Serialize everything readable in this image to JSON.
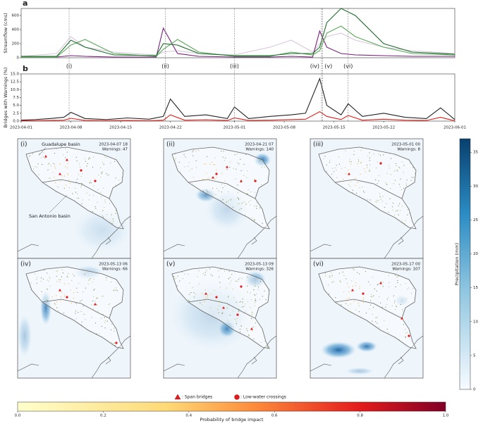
{
  "chart_data": [
    {
      "type": "line",
      "label": "a",
      "ylabel": "Streamflow (cms)",
      "x": [
        "2023-04-01",
        "2023-04-06",
        "2023-04-08",
        "2023-04-10",
        "2023-04-14",
        "2023-04-20",
        "2023-04-21",
        "2023-04-23",
        "2023-04-26",
        "2023-05-01",
        "2023-05-06",
        "2023-05-09",
        "2023-05-12",
        "2023-05-13",
        "2023-05-14",
        "2023-05-16",
        "2023-05-18",
        "2023-05-22",
        "2023-05-26",
        "2023-06-01"
      ],
      "series": [
        {
          "color": "#d9c8dc",
          "values": [
            20,
            60,
            300,
            150,
            80,
            40,
            80,
            100,
            60,
            40,
            150,
            250,
            80,
            200,
            300,
            350,
            250,
            150,
            100,
            60
          ]
        },
        {
          "color": "#7a1f7f",
          "values": [
            10,
            10,
            30,
            20,
            10,
            10,
            420,
            60,
            20,
            10,
            10,
            20,
            10,
            380,
            150,
            60,
            40,
            30,
            20,
            20
          ]
        },
        {
          "color": "#5aa85a",
          "values": [
            10,
            10,
            180,
            260,
            60,
            20,
            120,
            260,
            80,
            20,
            20,
            80,
            40,
            100,
            350,
            450,
            300,
            150,
            60,
            40
          ]
        },
        {
          "color": "#1a6b2a",
          "values": [
            20,
            20,
            250,
            150,
            40,
            30,
            200,
            180,
            60,
            30,
            30,
            60,
            60,
            150,
            500,
            700,
            600,
            200,
            80,
            50
          ]
        }
      ],
      "xlim": [
        "2023-04-01",
        "2023-06-01"
      ],
      "ylim": [
        0,
        700
      ],
      "yticks": [
        0,
        200,
        400,
        600
      ],
      "grid": false,
      "annotations": [
        {
          "label": "(i)",
          "x": "2023-04-07 18"
        },
        {
          "label": "(ii)",
          "x": "2023-04-21 07"
        },
        {
          "label": "(iii)",
          "x": "2023-05-01 00"
        },
        {
          "label": "(iv)",
          "x": "2023-05-13 06"
        },
        {
          "label": "(v)",
          "x": "2023-05-13 09"
        },
        {
          "label": "(vi)",
          "x": "2023-05-17 00"
        }
      ]
    },
    {
      "type": "line",
      "label": "b",
      "ylabel": "Bridges with Warnings (%)",
      "x": [
        "2023-04-01",
        "2023-04-03",
        "2023-04-05",
        "2023-04-07",
        "2023-04-08",
        "2023-04-10",
        "2023-04-13",
        "2023-04-16",
        "2023-04-19",
        "2023-04-21",
        "2023-04-22",
        "2023-04-24",
        "2023-04-27",
        "2023-04-30",
        "2023-05-01",
        "2023-05-03",
        "2023-05-06",
        "2023-05-09",
        "2023-05-11",
        "2023-05-13",
        "2023-05-14",
        "2023-05-16",
        "2023-05-17",
        "2023-05-19",
        "2023-05-22",
        "2023-05-25",
        "2023-05-28",
        "2023-05-30",
        "2023-06-01"
      ],
      "series": [
        {
          "color": "#222222",
          "values": [
            0.3,
            0.5,
            0.8,
            1.2,
            2.8,
            0.8,
            0.5,
            1.0,
            0.6,
            1.5,
            7.0,
            1.5,
            2.0,
            0.8,
            4.5,
            0.8,
            1.5,
            2.0,
            2.5,
            13.5,
            5.0,
            2.0,
            5.5,
            1.5,
            2.5,
            1.2,
            0.8,
            4.2,
            0.5
          ]
        },
        {
          "color": "#e0201b",
          "values": [
            0.1,
            0.1,
            0.2,
            0.3,
            0.9,
            0.2,
            0.1,
            0.2,
            0.1,
            0.3,
            2.0,
            0.3,
            0.4,
            0.2,
            1.0,
            0.2,
            0.3,
            0.5,
            0.6,
            3.0,
            1.5,
            0.5,
            1.8,
            0.3,
            0.6,
            0.3,
            0.2,
            1.2,
            0.1
          ]
        }
      ],
      "xlim": [
        "2023-04-01",
        "2023-06-01"
      ],
      "xticks": [
        "2023-04-01",
        "2023-04-08",
        "2023-04-15",
        "2023-04-22",
        "2023-05-01",
        "2023-05-08",
        "2023-05-15",
        "2023-05-22",
        "2023-06-01"
      ],
      "ylim": [
        0,
        15
      ],
      "yticks": [
        {
          "value": 0,
          "label": "0.0"
        },
        2.5,
        {
          "value": 5,
          "label": "5.0"
        },
        7.5,
        {
          "value": 10,
          "label": "10.0"
        },
        12.5,
        {
          "value": 15,
          "label": "15.0"
        }
      ]
    }
  ],
  "maps": [
    {
      "label": "(i)",
      "time": "2023-04-07 18",
      "warnings": "Warnings: 47"
    },
    {
      "label": "(ii)",
      "time": "2023-04-21 07",
      "warnings": "Warnings: 140"
    },
    {
      "label": "(iii)",
      "time": "2023-05-01 00",
      "warnings": "Warnings: 8"
    },
    {
      "label": "(iv)",
      "time": "2023-05-13 06",
      "warnings": "Warnings: 66"
    },
    {
      "label": "(v)",
      "time": "2023-05-13 09",
      "warnings": "Warnings: 326"
    },
    {
      "label": "(vi)",
      "time": "2023-05-17 00",
      "warnings": "Warnings: 107"
    }
  ],
  "basin_labels": [
    "Guadalupe basin",
    "San Antonio basin"
  ],
  "legend": [
    ": Span bridges",
    ": Low-water crossings"
  ],
  "precip_colorbar": {
    "label": "Precipitation (mm)",
    "lim": [
      0,
      37
    ],
    "ticks": [
      0,
      5,
      10,
      15,
      20,
      25,
      30,
      35
    ]
  },
  "prob_colorbar": {
    "label": "Probability of bridge impact",
    "lim": [
      0,
      1
    ],
    "ticks": [
      {
        "value": 0,
        "label": "0.0"
      },
      0.2,
      0.4,
      0.6,
      0.8,
      {
        "value": 1,
        "label": "1.0"
      }
    ]
  }
}
